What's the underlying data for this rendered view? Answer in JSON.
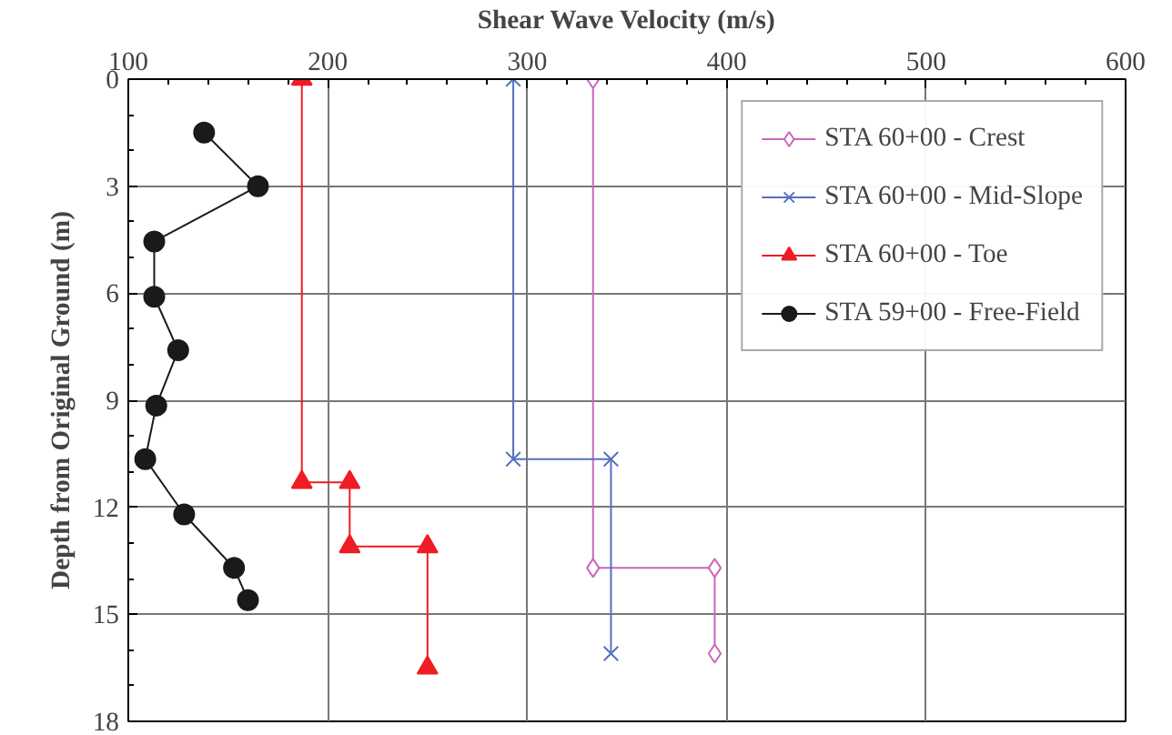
{
  "chart_data": {
    "type": "line",
    "xlabel": "Shear Wave Velocity (m/s)",
    "ylabel": "Depth from Original Ground (m)",
    "xlim": [
      100,
      600
    ],
    "xticks": [
      100,
      200,
      300,
      400,
      500,
      600
    ],
    "ylim": [
      18,
      0
    ],
    "yticks": [
      0,
      3,
      6,
      9,
      12,
      15,
      18
    ],
    "grid": true,
    "legend": "top right",
    "line_style": "solid",
    "series": [
      {
        "name": "STA 60+00 - Crest",
        "color": "#cc66bb",
        "marker": "diamond",
        "x": [
          333,
          333,
          394,
          394
        ],
        "values": [
          0,
          13.7,
          13.7,
          16.1
        ]
      },
      {
        "name": "STA 60+00 - Mid-Slope",
        "color": "#5570c0",
        "marker": "cross",
        "x": [
          293,
          293,
          342,
          342
        ],
        "values": [
          0,
          10.65,
          10.65,
          16.1
        ]
      },
      {
        "name": "STA 60+00 - Toe",
        "color": "#ee1c24",
        "marker": "triangle",
        "x": [
          187,
          187,
          211,
          211,
          250,
          250
        ],
        "values": [
          0,
          11.3,
          11.3,
          13.1,
          13.1,
          16.5
        ]
      },
      {
        "name": "STA 59+00 - Free-Field",
        "color": "#1a1a1a",
        "marker": "circle",
        "x": [
          138,
          165,
          113,
          113,
          125,
          114,
          108.5,
          128,
          153,
          160
        ],
        "values": [
          1.5,
          3.0,
          4.55,
          6.1,
          7.6,
          9.15,
          10.65,
          12.2,
          13.7,
          14.6
        ]
      }
    ]
  }
}
